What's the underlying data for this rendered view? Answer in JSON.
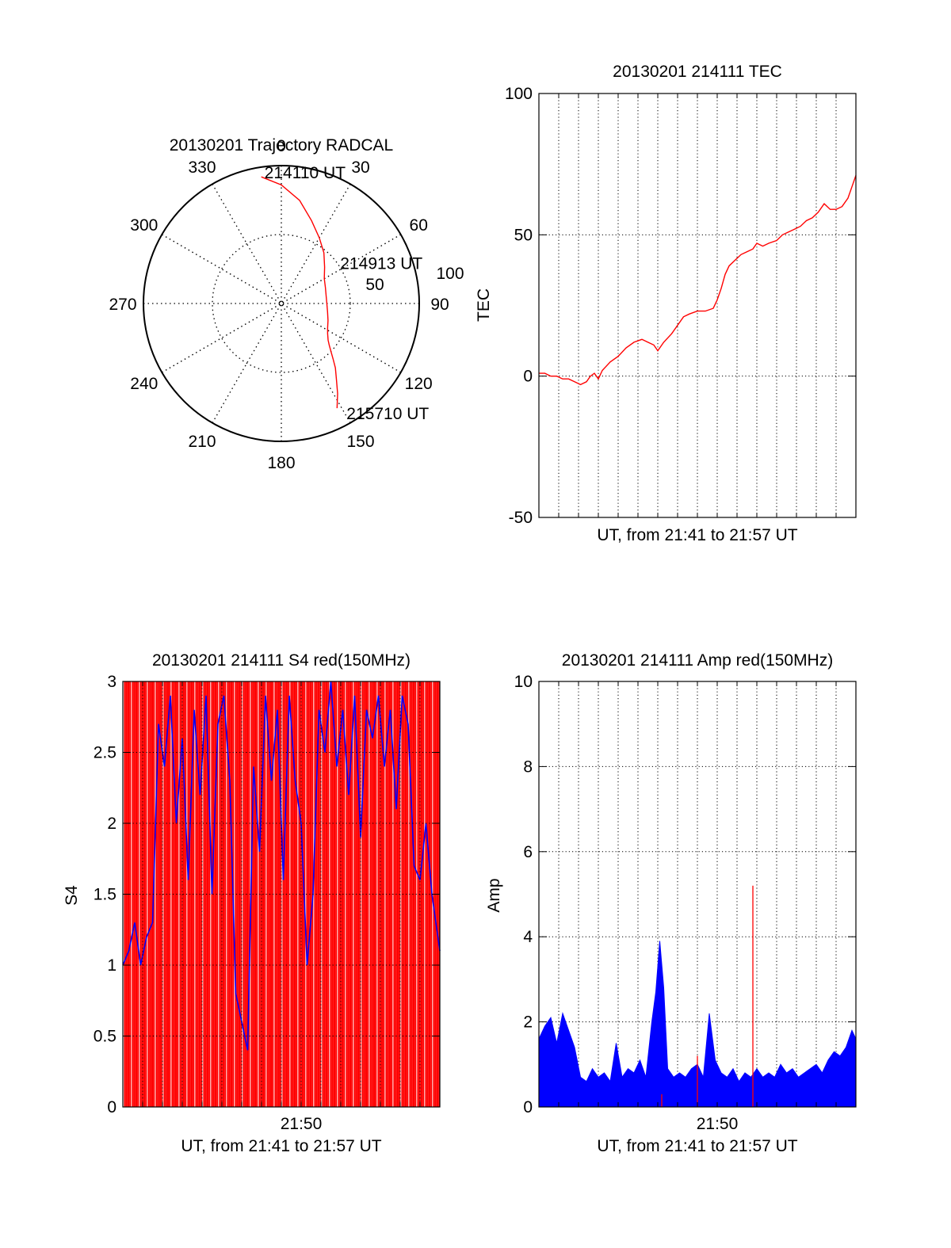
{
  "colors": {
    "red": "#ff0000",
    "blue": "#0000ff",
    "axis": "#000000",
    "grid": "#000000"
  },
  "chart_data": [
    {
      "type": "polar",
      "title": "20130201 Trajectory RADCAL",
      "angle_labels": [
        "0",
        "30",
        "60",
        "90",
        "120",
        "150",
        "180",
        "210",
        "240",
        "270",
        "300",
        "330"
      ],
      "radius_labels": [
        "50",
        "100"
      ],
      "rlim": [
        0,
        100
      ],
      "grid": true,
      "series": [
        {
          "color": "red",
          "points": [
            [
              -9,
              93
            ],
            [
              0,
              86
            ],
            [
              10,
              76
            ],
            [
              20,
              64
            ],
            [
              30,
              55
            ],
            [
              40,
              48
            ],
            [
              50,
              41
            ],
            [
              60,
              36
            ],
            [
              70,
              34
            ],
            [
              80,
              33
            ],
            [
              90,
              33
            ],
            [
              100,
              34
            ],
            [
              110,
              36
            ],
            [
              118,
              38
            ],
            [
              123,
              40
            ],
            [
              128,
              43
            ],
            [
              131,
              46
            ],
            [
              134,
              50
            ],
            [
              137,
              55
            ],
            [
              140,
              61
            ],
            [
              144,
              68
            ],
            [
              148,
              77
            ],
            [
              152,
              86
            ]
          ]
        }
      ],
      "annotations": [
        {
          "text": "214110 UT",
          "at": [
            -9,
            93
          ]
        },
        {
          "text": "214913 UT",
          "at": [
            60,
            36
          ]
        },
        {
          "text": "215710 UT",
          "at": [
            152,
            86
          ]
        }
      ]
    },
    {
      "type": "line",
      "title": "20130201 214111 TEC",
      "xlabel": "UT, from 21:41 to 21:57 UT",
      "ylabel": "TEC",
      "xlim": [
        0,
        16
      ],
      "ylim": [
        -50,
        100
      ],
      "yticks": [
        -50,
        0,
        50,
        100
      ],
      "grid": true,
      "series": [
        {
          "color": "red",
          "points": [
            [
              0,
              1
            ],
            [
              0.3,
              1
            ],
            [
              0.6,
              0
            ],
            [
              0.9,
              0
            ],
            [
              1.2,
              -1
            ],
            [
              1.5,
              -1
            ],
            [
              1.8,
              -2
            ],
            [
              2.1,
              -3
            ],
            [
              2.4,
              -2
            ],
            [
              2.6,
              0
            ],
            [
              2.8,
              1
            ],
            [
              3.0,
              -1
            ],
            [
              3.2,
              2
            ],
            [
              3.6,
              5
            ],
            [
              4.0,
              7
            ],
            [
              4.4,
              10
            ],
            [
              4.8,
              12
            ],
            [
              5.2,
              13
            ],
            [
              5.5,
              12
            ],
            [
              5.8,
              11
            ],
            [
              6.0,
              9
            ],
            [
              6.3,
              12
            ],
            [
              6.7,
              15
            ],
            [
              7.0,
              18
            ],
            [
              7.3,
              21
            ],
            [
              7.6,
              22
            ],
            [
              8.0,
              23
            ],
            [
              8.4,
              23
            ],
            [
              8.8,
              24
            ],
            [
              9.0,
              27
            ],
            [
              9.2,
              31
            ],
            [
              9.4,
              36
            ],
            [
              9.6,
              39
            ],
            [
              9.9,
              41
            ],
            [
              10.2,
              43
            ],
            [
              10.5,
              44
            ],
            [
              10.8,
              45
            ],
            [
              11.0,
              47
            ],
            [
              11.3,
              46
            ],
            [
              11.6,
              47
            ],
            [
              12.0,
              48
            ],
            [
              12.3,
              50
            ],
            [
              12.6,
              51
            ],
            [
              12.9,
              52
            ],
            [
              13.2,
              53
            ],
            [
              13.5,
              55
            ],
            [
              13.8,
              56
            ],
            [
              14.1,
              58
            ],
            [
              14.4,
              61
            ],
            [
              14.7,
              59
            ],
            [
              15.0,
              59
            ],
            [
              15.3,
              60
            ],
            [
              15.6,
              63
            ],
            [
              15.8,
              67
            ],
            [
              16.0,
              71
            ],
            [
              16.4,
              73
            ]
          ]
        }
      ]
    },
    {
      "type": "line",
      "title": "20130201 214111 S4 red(150MHz)",
      "xlabel": "UT, from 21:41 to 21:57 UT",
      "ylabel": "S4",
      "xlim": [
        0,
        16
      ],
      "ylim": [
        0,
        3
      ],
      "yticks": [
        0,
        0.5,
        1,
        1.5,
        2,
        2.5,
        3
      ],
      "yticklabels": [
        "0",
        "0.5",
        "1",
        "1.5",
        "2",
        "2.5",
        "3"
      ],
      "xticks": [
        9
      ],
      "xticklabels": [
        "21:50"
      ],
      "grid": true,
      "series": [
        {
          "color": "red",
          "style": "dense vertical spikes",
          "points": [
            [
              0.1,
              3
            ],
            [
              0.5,
              3
            ],
            [
              0.9,
              3
            ],
            [
              1.3,
              3
            ],
            [
              1.7,
              3
            ],
            [
              2.1,
              3
            ],
            [
              2.5,
              3
            ],
            [
              2.9,
              3
            ],
            [
              3.3,
              3
            ],
            [
              3.7,
              3
            ],
            [
              4.1,
              3
            ],
            [
              4.5,
              3
            ],
            [
              4.9,
              3
            ],
            [
              5.3,
              3
            ],
            [
              5.7,
              3
            ],
            [
              6.1,
              3
            ],
            [
              6.5,
              3
            ],
            [
              6.9,
              3
            ],
            [
              7.3,
              3
            ],
            [
              7.7,
              3
            ],
            [
              8.1,
              3
            ],
            [
              8.5,
              3
            ],
            [
              8.9,
              3
            ],
            [
              9.3,
              3
            ],
            [
              9.7,
              3
            ],
            [
              10.1,
              3
            ],
            [
              10.5,
              3
            ],
            [
              10.9,
              3
            ],
            [
              11.3,
              3
            ],
            [
              11.7,
              3
            ],
            [
              12.1,
              3
            ],
            [
              12.5,
              3
            ],
            [
              12.9,
              3
            ],
            [
              13.3,
              3
            ],
            [
              13.7,
              3
            ],
            [
              14.1,
              3
            ],
            [
              14.5,
              3
            ],
            [
              14.9,
              3
            ],
            [
              15.3,
              3
            ],
            [
              15.7,
              3
            ]
          ]
        },
        {
          "color": "blue",
          "points": [
            [
              0,
              1.0
            ],
            [
              0.3,
              1.1
            ],
            [
              0.6,
              1.3
            ],
            [
              0.9,
              1.0
            ],
            [
              1.2,
              1.2
            ],
            [
              1.5,
              1.3
            ],
            [
              1.8,
              2.7
            ],
            [
              2.1,
              2.4
            ],
            [
              2.4,
              2.9
            ],
            [
              2.7,
              2.0
            ],
            [
              3.0,
              2.6
            ],
            [
              3.3,
              1.6
            ],
            [
              3.6,
              2.8
            ],
            [
              3.9,
              2.2
            ],
            [
              4.2,
              2.9
            ],
            [
              4.5,
              1.5
            ],
            [
              4.8,
              2.7
            ],
            [
              5.1,
              2.9
            ],
            [
              5.4,
              2.3
            ],
            [
              5.7,
              0.8
            ],
            [
              6.0,
              0.6
            ],
            [
              6.3,
              0.4
            ],
            [
              6.6,
              2.4
            ],
            [
              6.9,
              1.8
            ],
            [
              7.2,
              2.9
            ],
            [
              7.5,
              2.3
            ],
            [
              7.8,
              2.8
            ],
            [
              8.1,
              1.6
            ],
            [
              8.4,
              2.9
            ],
            [
              8.7,
              2.3
            ],
            [
              9.0,
              2.0
            ],
            [
              9.3,
              1.0
            ],
            [
              9.6,
              1.5
            ],
            [
              9.9,
              2.8
            ],
            [
              10.2,
              2.5
            ],
            [
              10.5,
              3.0
            ],
            [
              10.8,
              2.4
            ],
            [
              11.1,
              2.8
            ],
            [
              11.4,
              2.2
            ],
            [
              11.7,
              2.9
            ],
            [
              12.0,
              1.9
            ],
            [
              12.3,
              2.8
            ],
            [
              12.6,
              2.6
            ],
            [
              12.9,
              2.9
            ],
            [
              13.2,
              2.4
            ],
            [
              13.5,
              2.8
            ],
            [
              13.8,
              2.1
            ],
            [
              14.1,
              2.9
            ],
            [
              14.4,
              2.7
            ],
            [
              14.7,
              1.7
            ],
            [
              15.0,
              1.6
            ],
            [
              15.3,
              2.0
            ],
            [
              15.6,
              1.5
            ],
            [
              15.9,
              1.2
            ],
            [
              16.0,
              1.1
            ]
          ]
        }
      ]
    },
    {
      "type": "line",
      "title": "20130201 214111 Amp red(150MHz)",
      "xlabel": "UT, from 21:41 to 21:57 UT",
      "ylabel": "Amp",
      "xlim": [
        0,
        16
      ],
      "ylim": [
        0,
        10
      ],
      "yticks": [
        0,
        2,
        4,
        6,
        8,
        10
      ],
      "xticks": [
        9
      ],
      "xticklabels": [
        "21:50"
      ],
      "grid": true,
      "series": [
        {
          "color": "blue",
          "points": [
            [
              0,
              1.6
            ],
            [
              0.3,
              1.9
            ],
            [
              0.6,
              2.1
            ],
            [
              0.9,
              1.5
            ],
            [
              1.2,
              2.2
            ],
            [
              1.5,
              1.8
            ],
            [
              1.8,
              1.4
            ],
            [
              2.1,
              0.7
            ],
            [
              2.4,
              0.6
            ],
            [
              2.7,
              0.9
            ],
            [
              3.0,
              0.7
            ],
            [
              3.3,
              0.8
            ],
            [
              3.6,
              0.6
            ],
            [
              3.9,
              1.5
            ],
            [
              4.2,
              0.7
            ],
            [
              4.5,
              0.9
            ],
            [
              4.8,
              0.8
            ],
            [
              5.1,
              1.1
            ],
            [
              5.4,
              0.7
            ],
            [
              5.7,
              2.0
            ],
            [
              5.9,
              2.7
            ],
            [
              6.1,
              3.9
            ],
            [
              6.3,
              2.8
            ],
            [
              6.5,
              0.9
            ],
            [
              6.8,
              0.7
            ],
            [
              7.1,
              0.8
            ],
            [
              7.4,
              0.7
            ],
            [
              7.7,
              0.9
            ],
            [
              8.0,
              1.0
            ],
            [
              8.3,
              0.7
            ],
            [
              8.6,
              2.2
            ],
            [
              8.9,
              1.1
            ],
            [
              9.2,
              0.8
            ],
            [
              9.5,
              0.7
            ],
            [
              9.8,
              0.9
            ],
            [
              10.1,
              0.6
            ],
            [
              10.4,
              0.8
            ],
            [
              10.7,
              0.7
            ],
            [
              11.0,
              0.9
            ],
            [
              11.3,
              0.7
            ],
            [
              11.6,
              0.8
            ],
            [
              11.9,
              0.7
            ],
            [
              12.2,
              1.0
            ],
            [
              12.5,
              0.8
            ],
            [
              12.8,
              0.9
            ],
            [
              13.1,
              0.7
            ],
            [
              13.4,
              0.8
            ],
            [
              13.7,
              0.9
            ],
            [
              14.0,
              1.0
            ],
            [
              14.3,
              0.8
            ],
            [
              14.6,
              1.1
            ],
            [
              14.9,
              1.3
            ],
            [
              15.2,
              1.2
            ],
            [
              15.5,
              1.4
            ],
            [
              15.8,
              1.8
            ],
            [
              16.0,
              1.6
            ]
          ]
        },
        {
          "color": "red",
          "points": [
            [
              6.2,
              0.3
            ],
            [
              8.0,
              1.2
            ],
            [
              10.8,
              5.2
            ]
          ]
        }
      ]
    }
  ]
}
